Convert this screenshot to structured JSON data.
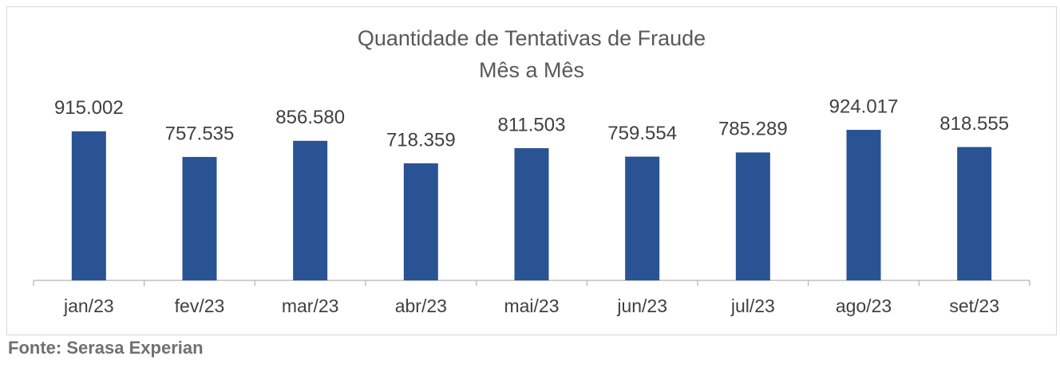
{
  "chart_data": {
    "type": "bar",
    "title": [
      "Quantidade de Tentativas de Fraude",
      "Mês a Mês"
    ],
    "categories": [
      "jan/23",
      "fev/23",
      "mar/23",
      "abr/23",
      "mai/23",
      "jun/23",
      "jul/23",
      "ago/23",
      "set/23"
    ],
    "values": [
      915002,
      757535,
      856580,
      718359,
      811503,
      759554,
      785289,
      924017,
      818555
    ],
    "value_labels": [
      "915.002",
      "757.535",
      "856.580",
      "718.359",
      "811.503",
      "759.554",
      "785.289",
      "924.017",
      "818.555"
    ],
    "color": "#2a5394",
    "source": "Fonte: Serasa Experian"
  }
}
